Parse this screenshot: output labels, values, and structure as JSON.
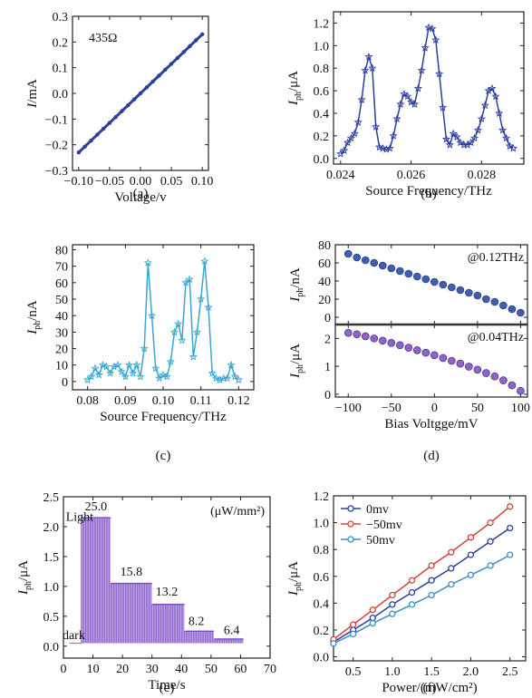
{
  "chart_data": [
    {
      "id": "a",
      "type": "line",
      "caption": "(a)",
      "annotation": "435Ω",
      "xlabel": "Voltage/v",
      "ylabel_main": "I",
      "ylabel_unit": "/mA",
      "xlim": [
        -0.11,
        0.11
      ],
      "ylim": [
        -0.3,
        0.3
      ],
      "xticks": [
        -0.1,
        -0.05,
        0.0,
        0.05,
        0.1
      ],
      "xtick_labels": [
        "−0.10",
        "−0.05",
        "0.00",
        "0.05",
        "0.10"
      ],
      "yticks": [
        -0.3,
        -0.2,
        -0.1,
        0.0,
        0.1,
        0.2,
        0.3
      ],
      "ytick_labels": [
        "−0.3",
        "−0.2",
        "−0.1",
        "0.0",
        "0.1",
        "0.2",
        "0.3"
      ],
      "color": "#2b3f9e",
      "series": [
        {
          "x": [
            -0.1,
            -0.09,
            -0.08,
            -0.07,
            -0.06,
            -0.05,
            -0.04,
            -0.03,
            -0.02,
            -0.01,
            0.0,
            0.01,
            0.02,
            0.03,
            0.04,
            0.05,
            0.06,
            0.07,
            0.08,
            0.09,
            0.1
          ],
          "y": [
            -0.23,
            -0.207,
            -0.184,
            -0.161,
            -0.138,
            -0.115,
            -0.092,
            -0.069,
            -0.046,
            -0.023,
            0.0,
            0.023,
            0.046,
            0.069,
            0.092,
            0.115,
            0.138,
            0.161,
            0.184,
            0.207,
            0.23
          ]
        }
      ]
    },
    {
      "id": "b",
      "type": "line",
      "caption": "(b)",
      "xlabel": "Source Frequency/THz",
      "ylabel_main": "I",
      "ylabel_sub": "ph",
      "ylabel_unit": "/μA",
      "xlim": [
        0.0238,
        0.0292
      ],
      "ylim": [
        -0.05,
        1.3
      ],
      "xticks": [
        0.024,
        0.026,
        0.028
      ],
      "xtick_labels": [
        "0.024",
        "0.026",
        "0.028"
      ],
      "yticks": [
        0.0,
        0.2,
        0.4,
        0.6,
        0.8,
        1.0,
        1.2
      ],
      "ytick_labels": [
        "0.0",
        "0.2",
        "0.4",
        "0.6",
        "0.8",
        "1.0",
        "1.2"
      ],
      "color": "#2b3f9e",
      "marker": "star",
      "series": [
        {
          "x": [
            0.024,
            0.0241,
            0.0242,
            0.0243,
            0.0244,
            0.0245,
            0.0246,
            0.0247,
            0.0248,
            0.0249,
            0.025,
            0.0251,
            0.0252,
            0.0253,
            0.0254,
            0.0255,
            0.0256,
            0.0257,
            0.0258,
            0.0259,
            0.026,
            0.0261,
            0.0262,
            0.0263,
            0.0264,
            0.0265,
            0.0266,
            0.0267,
            0.0268,
            0.0269,
            0.027,
            0.0271,
            0.0272,
            0.0273,
            0.0274,
            0.0275,
            0.0276,
            0.0277,
            0.0278,
            0.0279,
            0.028,
            0.0281,
            0.0282,
            0.0283,
            0.0284,
            0.0285,
            0.0286,
            0.0287,
            0.0288,
            0.0289
          ],
          "y": [
            0.04,
            0.07,
            0.14,
            0.18,
            0.22,
            0.32,
            0.52,
            0.78,
            0.9,
            0.8,
            0.28,
            0.1,
            0.09,
            0.08,
            0.09,
            0.2,
            0.35,
            0.48,
            0.57,
            0.55,
            0.5,
            0.48,
            0.62,
            0.78,
            0.98,
            1.16,
            1.15,
            1.05,
            0.75,
            0.45,
            0.17,
            0.12,
            0.22,
            0.19,
            0.14,
            0.12,
            0.12,
            0.14,
            0.18,
            0.25,
            0.35,
            0.47,
            0.6,
            0.62,
            0.55,
            0.4,
            0.25,
            0.18,
            0.11,
            0.09
          ]
        }
      ]
    },
    {
      "id": "c",
      "type": "line",
      "caption": "(c)",
      "xlabel": "Source Frequency/THz",
      "ylabel_main": "I",
      "ylabel_sub": "ph",
      "ylabel_unit": "/nA",
      "xlim": [
        0.076,
        0.124
      ],
      "ylim": [
        -5,
        83
      ],
      "xticks": [
        0.08,
        0.09,
        0.1,
        0.11,
        0.12
      ],
      "xtick_labels": [
        "0.08",
        "0.09",
        "0.10",
        "0.11",
        "0.12"
      ],
      "yticks": [
        0,
        10,
        20,
        30,
        40,
        50,
        60,
        70,
        80
      ],
      "ytick_labels": [
        "0",
        "10",
        "20",
        "30",
        "40",
        "50",
        "60",
        "70",
        "80"
      ],
      "color": "#3aa7d3",
      "marker": "star",
      "series": [
        {
          "x": [
            0.08,
            0.081,
            0.082,
            0.083,
            0.084,
            0.085,
            0.086,
            0.087,
            0.088,
            0.089,
            0.09,
            0.091,
            0.092,
            0.093,
            0.094,
            0.095,
            0.096,
            0.097,
            0.098,
            0.099,
            0.1,
            0.101,
            0.102,
            0.103,
            0.104,
            0.105,
            0.106,
            0.107,
            0.108,
            0.109,
            0.11,
            0.111,
            0.112,
            0.113,
            0.114,
            0.115,
            0.116,
            0.117,
            0.118,
            0.119,
            0.12
          ],
          "y": [
            1,
            3,
            8,
            4,
            10,
            9,
            5,
            9,
            10,
            6,
            3,
            10,
            5,
            10,
            3,
            20,
            72,
            40,
            8,
            2,
            4,
            3,
            12,
            30,
            35,
            25,
            60,
            62,
            15,
            30,
            50,
            73,
            45,
            5,
            2,
            1,
            2,
            2,
            10,
            3,
            1
          ]
        }
      ]
    },
    {
      "id": "d1",
      "type": "scatter",
      "caption": "",
      "annotation": "@0.12THz",
      "ylabel_main": "I",
      "ylabel_sub": "ph",
      "ylabel_unit": "/nA",
      "xlim": [
        -115,
        108
      ],
      "ylim": [
        -8,
        80
      ],
      "xticks": [
        -100,
        -50,
        0,
        50,
        100
      ],
      "xtick_labels": [],
      "yticks": [
        0,
        20,
        40,
        60,
        80
      ],
      "ytick_labels": [
        "0",
        "20",
        "40",
        "60",
        "80"
      ],
      "color": "#2b4ba8",
      "series": [
        {
          "x": [
            -100,
            -90,
            -80,
            -70,
            -60,
            -50,
            -40,
            -30,
            -20,
            -10,
            0,
            10,
            20,
            30,
            40,
            50,
            60,
            70,
            80,
            90,
            100
          ],
          "y": [
            70,
            66,
            63,
            60,
            57,
            54,
            51,
            48,
            45,
            42,
            39,
            36,
            33,
            30,
            27,
            24,
            20,
            17,
            13,
            9,
            5
          ]
        }
      ]
    },
    {
      "id": "d2",
      "type": "scatter",
      "caption": "(d)",
      "annotation": "@0.04THz",
      "xlabel": "Bias Voltgge/mV",
      "ylabel_main": "I",
      "ylabel_sub": "ph",
      "ylabel_unit": "/μA",
      "xlim": [
        -115,
        108
      ],
      "ylim": [
        -0.1,
        2.5
      ],
      "xticks": [
        -100,
        -50,
        0,
        50,
        100
      ],
      "xtick_labels": [
        "−100",
        "−50",
        "0",
        "50",
        "100"
      ],
      "yticks": [
        0,
        1,
        2
      ],
      "ytick_labels": [
        "0",
        "1",
        "2"
      ],
      "color": "#8a4fc4",
      "series": [
        {
          "x": [
            -100,
            -90,
            -80,
            -70,
            -60,
            -50,
            -40,
            -30,
            -20,
            -10,
            0,
            10,
            20,
            30,
            40,
            50,
            60,
            70,
            80,
            90,
            100
          ],
          "y": [
            2.2,
            2.15,
            2.08,
            2.0,
            1.92,
            1.84,
            1.76,
            1.67,
            1.58,
            1.49,
            1.4,
            1.3,
            1.2,
            1.1,
            0.99,
            0.88,
            0.76,
            0.64,
            0.5,
            0.32,
            0.12
          ]
        }
      ]
    },
    {
      "id": "e",
      "type": "area",
      "caption": "(e)",
      "unit_annotation": "(μW/mm²)",
      "xlabel": "Time/s",
      "ylabel_main": "I",
      "ylabel_sub": "ph",
      "ylabel_unit": "/μA",
      "xlim": [
        0,
        70
      ],
      "ylim": [
        -0.2,
        2.5
      ],
      "xticks": [
        0,
        10,
        20,
        30,
        40,
        50,
        60,
        70
      ],
      "xtick_labels": [
        "0",
        "10",
        "20",
        "30",
        "40",
        "50",
        "60",
        "70"
      ],
      "yticks": [
        0.0,
        0.5,
        1.0,
        1.5,
        2.0,
        2.5
      ],
      "ytick_labels": [
        "0.0",
        "0.5",
        "1.0",
        "1.5",
        "2.0",
        "2.5"
      ],
      "color": "#9b6fd6",
      "steps": [
        {
          "x0": 6,
          "x1": 16,
          "level": 2.15
        },
        {
          "x0": 16,
          "x1": 30,
          "level": 1.05
        },
        {
          "x0": 30,
          "x1": 41,
          "level": 0.7
        },
        {
          "x0": 41,
          "x1": 51,
          "level": 0.25
        },
        {
          "x0": 51,
          "x1": 61,
          "level": 0.12
        }
      ],
      "dark_level": 0.05,
      "labels": [
        {
          "text": "Light",
          "x": 5.5,
          "y": 2.1
        },
        {
          "text": "dark",
          "x": 3.5,
          "y": 0.12
        },
        {
          "text": "25.0",
          "x": 11,
          "y": 2.27
        },
        {
          "text": "15.8",
          "x": 23,
          "y": 1.18
        },
        {
          "text": "13.2",
          "x": 35,
          "y": 0.85
        },
        {
          "text": "8.2",
          "x": 45,
          "y": 0.35
        },
        {
          "text": "6.4",
          "x": 57,
          "y": 0.2
        }
      ]
    },
    {
      "id": "f",
      "type": "line",
      "caption": "(f)",
      "xlabel": "Power/(mW/cm²)",
      "ylabel_main": "I",
      "ylabel_sub": "ph",
      "ylabel_unit": "/μA",
      "xlim": [
        0.25,
        2.7
      ],
      "ylim": [
        -0.03,
        1.2
      ],
      "xticks": [
        0.5,
        1.0,
        1.5,
        2.0,
        2.5
      ],
      "xtick_labels": [
        "0.5",
        "1.0",
        "1.5",
        "2.0",
        "2.5"
      ],
      "yticks": [
        0.0,
        0.2,
        0.4,
        0.6,
        0.8,
        1.0,
        1.2
      ],
      "ytick_labels": [
        "0.0",
        "0.2",
        "0.4",
        "0.6",
        "0.8",
        "1.0",
        "1.2"
      ],
      "series": [
        {
          "name": "0mv",
          "color": "#2b3f9e",
          "x": [
            0.25,
            0.5,
            0.75,
            1.0,
            1.25,
            1.5,
            1.75,
            2.0,
            2.25,
            2.5
          ],
          "y": [
            0.11,
            0.2,
            0.29,
            0.39,
            0.48,
            0.57,
            0.66,
            0.76,
            0.86,
            0.96
          ]
        },
        {
          "name": "−50mv",
          "color": "#d9403a",
          "x": [
            0.25,
            0.5,
            0.75,
            1.0,
            1.25,
            1.5,
            1.75,
            2.0,
            2.25,
            2.5
          ],
          "y": [
            0.13,
            0.24,
            0.35,
            0.46,
            0.57,
            0.68,
            0.78,
            0.89,
            1.0,
            1.12
          ]
        },
        {
          "name": "50mv",
          "color": "#3a8fc6",
          "x": [
            0.25,
            0.5,
            0.75,
            1.0,
            1.25,
            1.5,
            1.75,
            2.0,
            2.25,
            2.5
          ],
          "y": [
            0.1,
            0.17,
            0.25,
            0.32,
            0.39,
            0.46,
            0.54,
            0.61,
            0.68,
            0.76
          ]
        }
      ]
    }
  ]
}
